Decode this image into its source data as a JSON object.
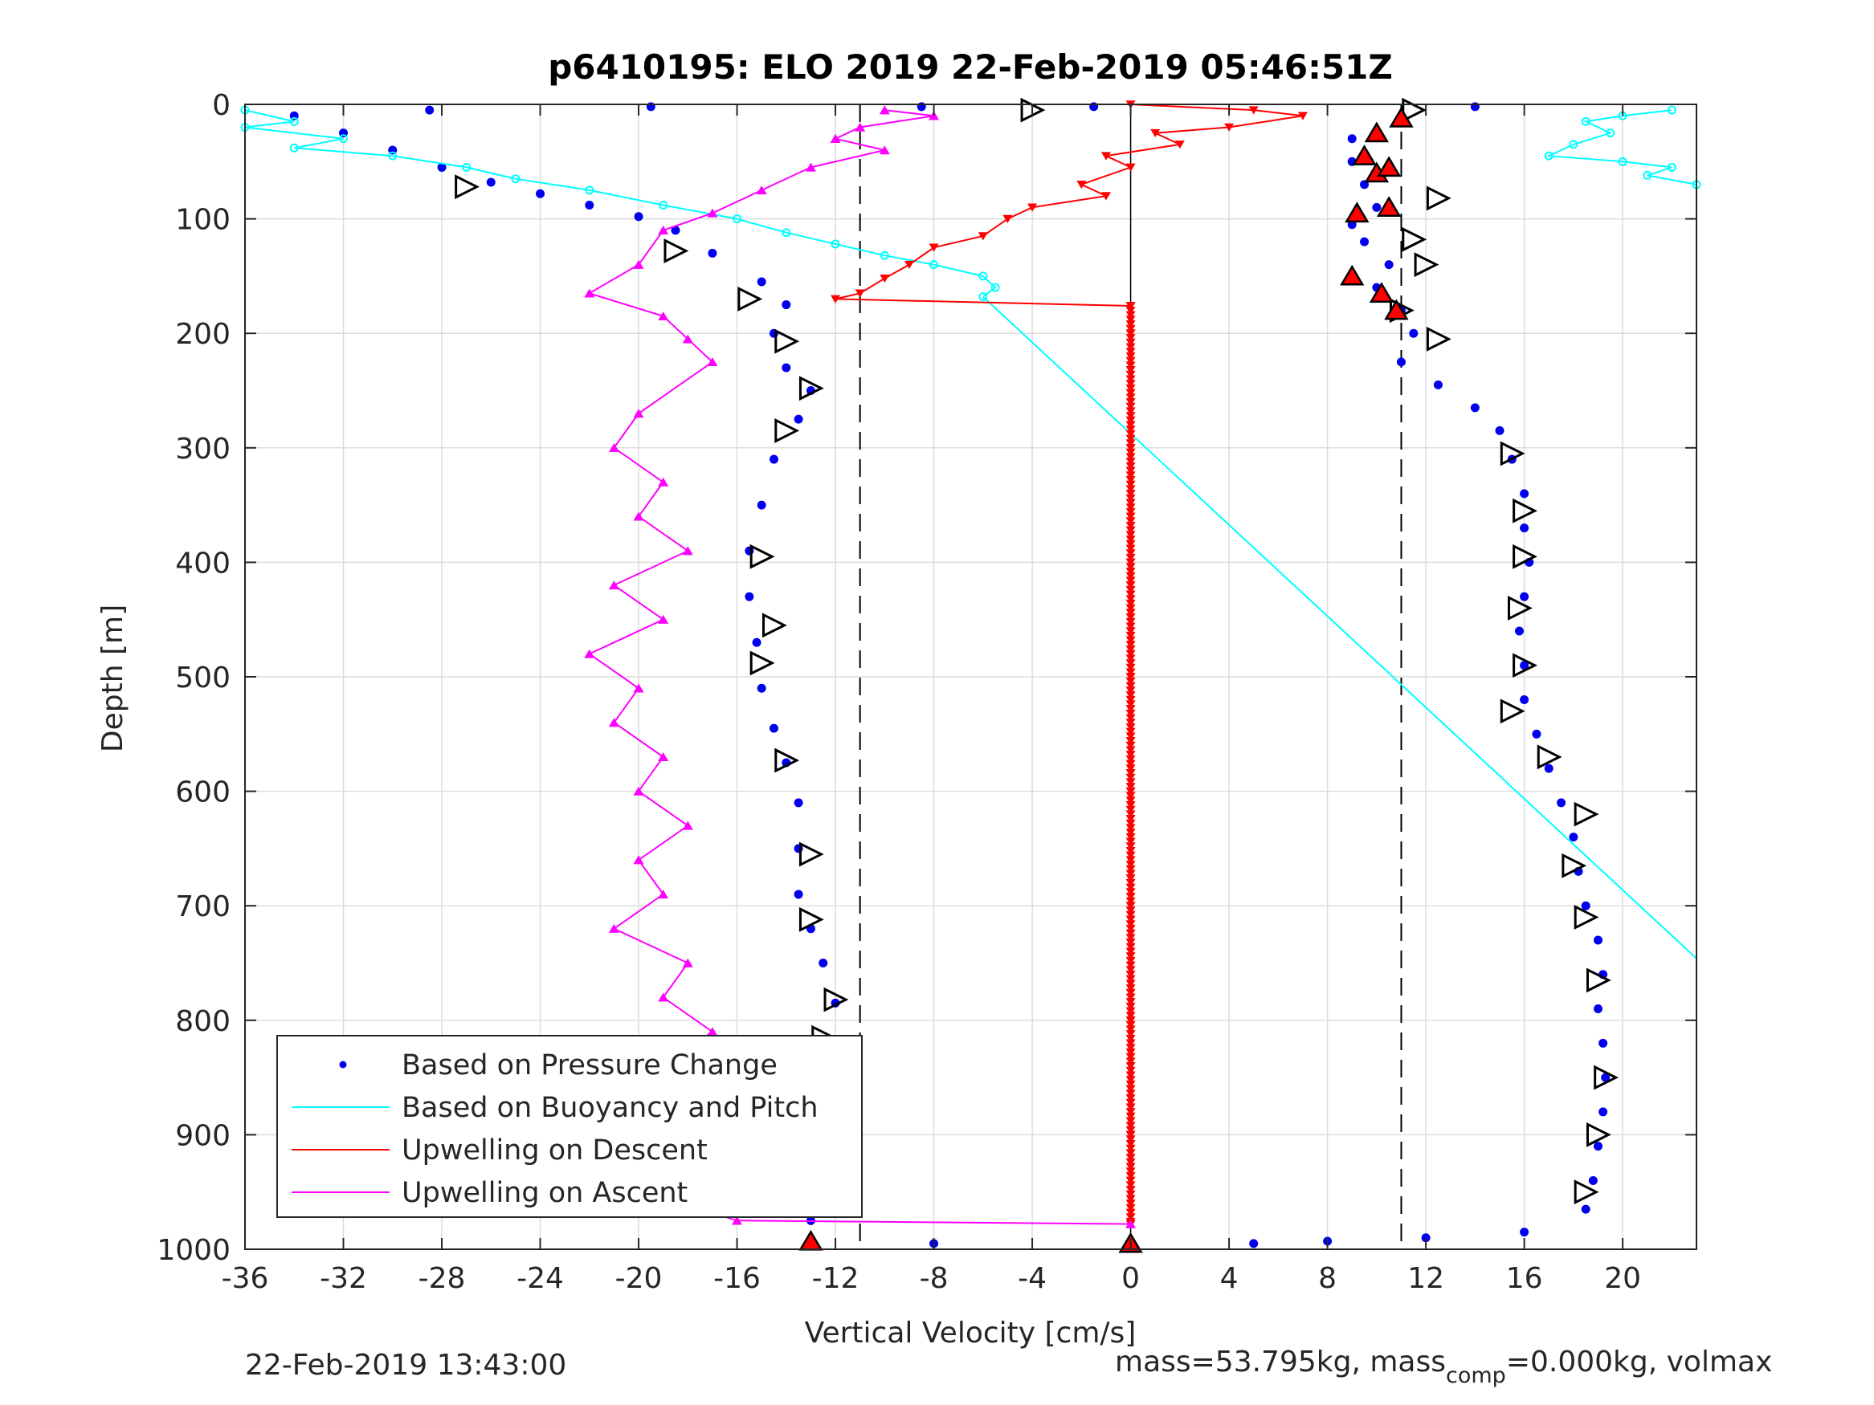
{
  "chart_data": {
    "type": "scatter",
    "title": "p6410195: ELO 2019 22-Feb-2019 05:46:51Z",
    "xlabel": "Vertical Velocity [cm/s]",
    "ylabel": "Depth [m]",
    "xlim": [
      -36,
      23
    ],
    "ylim": [
      1000,
      0
    ],
    "y_reversed": true,
    "grid": true,
    "xticks": [
      "-36",
      "-32",
      "-28",
      "-24",
      "-20",
      "-16",
      "-12",
      "-8",
      "-4",
      "0",
      "4",
      "8",
      "12",
      "16",
      "20"
    ],
    "yticks": [
      "0",
      "100",
      "200",
      "300",
      "400",
      "500",
      "600",
      "700",
      "800",
      "900",
      "1000"
    ],
    "reference_lines": {
      "dashed_x": [
        -11,
        11
      ],
      "solid_x": [
        0
      ]
    },
    "legend": {
      "placement": "bottom-left",
      "entries": [
        "Based on Pressure Change",
        "Based on Buoyancy and Pitch",
        "Upwelling on Descent",
        "Upwelling on Ascent"
      ]
    },
    "series": [
      {
        "name": "Based on Pressure Change",
        "style": "dots",
        "color": "#0000ee",
        "descent": [
          [
            -34,
            10
          ],
          [
            -32,
            25
          ],
          [
            -30,
            40
          ],
          [
            -28,
            55
          ],
          [
            -26,
            68
          ],
          [
            -24,
            78
          ],
          [
            -22,
            88
          ],
          [
            -20,
            98
          ],
          [
            -18.5,
            110
          ],
          [
            -17,
            130
          ],
          [
            -15,
            155
          ],
          [
            -14,
            175
          ],
          [
            -14.5,
            200
          ],
          [
            -14,
            230
          ],
          [
            -13,
            250
          ],
          [
            -13.5,
            275
          ],
          [
            -14.5,
            310
          ],
          [
            -15,
            350
          ],
          [
            -15.5,
            390
          ],
          [
            -15.5,
            430
          ],
          [
            -15.2,
            470
          ],
          [
            -15,
            510
          ],
          [
            -14.5,
            545
          ],
          [
            -14,
            575
          ],
          [
            -13.5,
            610
          ],
          [
            -13.5,
            650
          ],
          [
            -13.5,
            690
          ],
          [
            -13,
            720
          ],
          [
            -12.5,
            750
          ],
          [
            -12,
            785
          ],
          [
            -12.5,
            820
          ],
          [
            -13,
            860
          ],
          [
            -13,
            900
          ],
          [
            -13,
            940
          ],
          [
            -13,
            975
          ],
          [
            -13,
            995
          ]
        ],
        "ascent": [
          [
            14,
            2
          ],
          [
            11,
            10
          ],
          [
            9,
            30
          ],
          [
            9,
            50
          ],
          [
            9.5,
            70
          ],
          [
            10,
            90
          ],
          [
            9,
            105
          ],
          [
            9.5,
            120
          ],
          [
            10.5,
            140
          ],
          [
            10,
            160
          ],
          [
            11,
            180
          ],
          [
            11.5,
            200
          ],
          [
            11,
            225
          ],
          [
            12.5,
            245
          ],
          [
            14,
            265
          ],
          [
            15,
            285
          ],
          [
            15.5,
            310
          ],
          [
            16,
            340
          ],
          [
            16,
            370
          ],
          [
            16.2,
            400
          ],
          [
            16,
            430
          ],
          [
            15.8,
            460
          ],
          [
            16,
            490
          ],
          [
            16,
            520
          ],
          [
            16.5,
            550
          ],
          [
            17,
            580
          ],
          [
            17.5,
            610
          ],
          [
            18,
            640
          ],
          [
            18.2,
            670
          ],
          [
            18.5,
            700
          ],
          [
            19,
            730
          ],
          [
            19.2,
            760
          ],
          [
            19,
            790
          ],
          [
            19.2,
            820
          ],
          [
            19.3,
            850
          ],
          [
            19.2,
            880
          ],
          [
            19,
            910
          ],
          [
            18.8,
            940
          ],
          [
            18.5,
            965
          ]
        ],
        "scattered_outliers": [
          [
            -28.5,
            5
          ],
          [
            -19.5,
            2
          ],
          [
            -8.5,
            2
          ],
          [
            -1.5,
            2
          ],
          [
            0,
            995
          ],
          [
            -8,
            995
          ],
          [
            5,
            995
          ],
          [
            8,
            993
          ],
          [
            12,
            990
          ],
          [
            16,
            985
          ]
        ]
      },
      {
        "name": "Based on Buoyancy and Pitch",
        "style": "line-circles",
        "color": "#00ffff",
        "shallow": [
          [
            -36,
            5
          ],
          [
            -34,
            15
          ],
          [
            -36,
            20
          ],
          [
            -32,
            30
          ],
          [
            -34,
            38
          ],
          [
            -30,
            45
          ],
          [
            -27,
            55
          ],
          [
            -25,
            65
          ],
          [
            -22,
            75
          ],
          [
            -19,
            88
          ],
          [
            -16,
            100
          ],
          [
            -14,
            112
          ],
          [
            -12,
            122
          ],
          [
            -10,
            132
          ],
          [
            -8,
            140
          ],
          [
            -6,
            150
          ],
          [
            -5.5,
            160
          ],
          [
            -6,
            168
          ]
        ],
        "right_cluster": [
          [
            22,
            5
          ],
          [
            20,
            10
          ],
          [
            18.5,
            15
          ],
          [
            19.5,
            25
          ],
          [
            18,
            35
          ],
          [
            17,
            45
          ],
          [
            20,
            50
          ],
          [
            22,
            55
          ],
          [
            21,
            62
          ],
          [
            23,
            70
          ]
        ],
        "trend": [
          [
            -6,
            168
          ],
          [
            23,
            746
          ]
        ]
      },
      {
        "name": "Upwelling on Descent",
        "style": "line-down-triangles",
        "color": "#ff0000",
        "values": [
          [
            0,
            0
          ],
          [
            5,
            5
          ],
          [
            7,
            10
          ],
          [
            4,
            20
          ],
          [
            1,
            25
          ],
          [
            2,
            35
          ],
          [
            -1,
            45
          ],
          [
            0,
            55
          ],
          [
            -2,
            70
          ],
          [
            -1,
            80
          ],
          [
            -4,
            90
          ],
          [
            -5,
            100
          ],
          [
            -6,
            115
          ],
          [
            -8,
            125
          ],
          [
            -9,
            140
          ],
          [
            -10,
            152
          ],
          [
            -11,
            165
          ],
          [
            -12,
            170
          ],
          [
            0,
            176
          ],
          [
            0,
            200
          ],
          [
            0,
            300
          ],
          [
            0,
            400
          ],
          [
            0,
            500
          ],
          [
            0,
            600
          ],
          [
            0,
            700
          ],
          [
            0,
            800
          ],
          [
            0,
            900
          ],
          [
            0,
            978
          ]
        ]
      },
      {
        "name": "Upwelling on Ascent",
        "style": "line-up-triangles",
        "color": "#ff00ff",
        "values": [
          [
            -10,
            5
          ],
          [
            -8,
            10
          ],
          [
            -11,
            20
          ],
          [
            -12,
            30
          ],
          [
            -10,
            40
          ],
          [
            -13,
            55
          ],
          [
            -15,
            75
          ],
          [
            -17,
            95
          ],
          [
            -19,
            110
          ],
          [
            -20,
            140
          ],
          [
            -22,
            165
          ],
          [
            -19,
            185
          ],
          [
            -18,
            205
          ],
          [
            -17,
            225
          ],
          [
            -20,
            270
          ],
          [
            -21,
            300
          ],
          [
            -19,
            330
          ],
          [
            -20,
            360
          ],
          [
            -18,
            390
          ],
          [
            -21,
            420
          ],
          [
            -19,
            450
          ],
          [
            -22,
            480
          ],
          [
            -20,
            510
          ],
          [
            -21,
            540
          ],
          [
            -19,
            570
          ],
          [
            -20,
            600
          ],
          [
            -18,
            630
          ],
          [
            -20,
            660
          ],
          [
            -19,
            690
          ],
          [
            -21,
            720
          ],
          [
            -18,
            750
          ],
          [
            -19,
            780
          ],
          [
            -17,
            810
          ],
          [
            -19,
            840
          ],
          [
            -18,
            870
          ],
          [
            -20,
            900
          ],
          [
            -17,
            930
          ],
          [
            -19,
            955
          ],
          [
            -16,
            975
          ],
          [
            0,
            978
          ]
        ]
      },
      {
        "name": "",
        "style": "open-triangles",
        "color": "#000000",
        "values": [
          [
            -27,
            72
          ],
          [
            -18.5,
            128
          ],
          [
            -15.5,
            170
          ],
          [
            -14,
            207
          ],
          [
            -13,
            248
          ],
          [
            -14,
            285
          ],
          [
            -15,
            395
          ],
          [
            -14.5,
            455
          ],
          [
            -15,
            488
          ],
          [
            -14,
            573
          ],
          [
            -13,
            655
          ],
          [
            -13,
            712
          ],
          [
            -12,
            782
          ],
          [
            -12.5,
            815
          ],
          [
            -4,
            5
          ],
          [
            11.5,
            5
          ],
          [
            12.5,
            82
          ],
          [
            11.5,
            118
          ],
          [
            12,
            140
          ],
          [
            11,
            180
          ],
          [
            12.5,
            205
          ],
          [
            15.5,
            305
          ],
          [
            16,
            355
          ],
          [
            16,
            395
          ],
          [
            15.8,
            440
          ],
          [
            16,
            490
          ],
          [
            15.5,
            530
          ],
          [
            17,
            570
          ],
          [
            18.5,
            620
          ],
          [
            18,
            665
          ],
          [
            18.5,
            710
          ],
          [
            19,
            765
          ],
          [
            19.3,
            850
          ],
          [
            19,
            900
          ],
          [
            18.5,
            950
          ]
        ]
      },
      {
        "name": "",
        "style": "filled-triangles",
        "color": "#ff0000",
        "values": [
          [
            10,
            25
          ],
          [
            11,
            12
          ],
          [
            9.5,
            45
          ],
          [
            10,
            60
          ],
          [
            9.2,
            95
          ],
          [
            10.5,
            90
          ],
          [
            9,
            150
          ],
          [
            10.2,
            165
          ],
          [
            10.8,
            180
          ],
          [
            10.5,
            55
          ],
          [
            -13,
            993
          ],
          [
            0,
            995
          ]
        ]
      }
    ]
  },
  "footer": {
    "timestamp": "22-Feb-2019 13:43:00",
    "mass_prefix": "mass=53.795kg, mass",
    "mass_sub": "comp",
    "mass_suffix": "=0.000kg, volmax"
  }
}
